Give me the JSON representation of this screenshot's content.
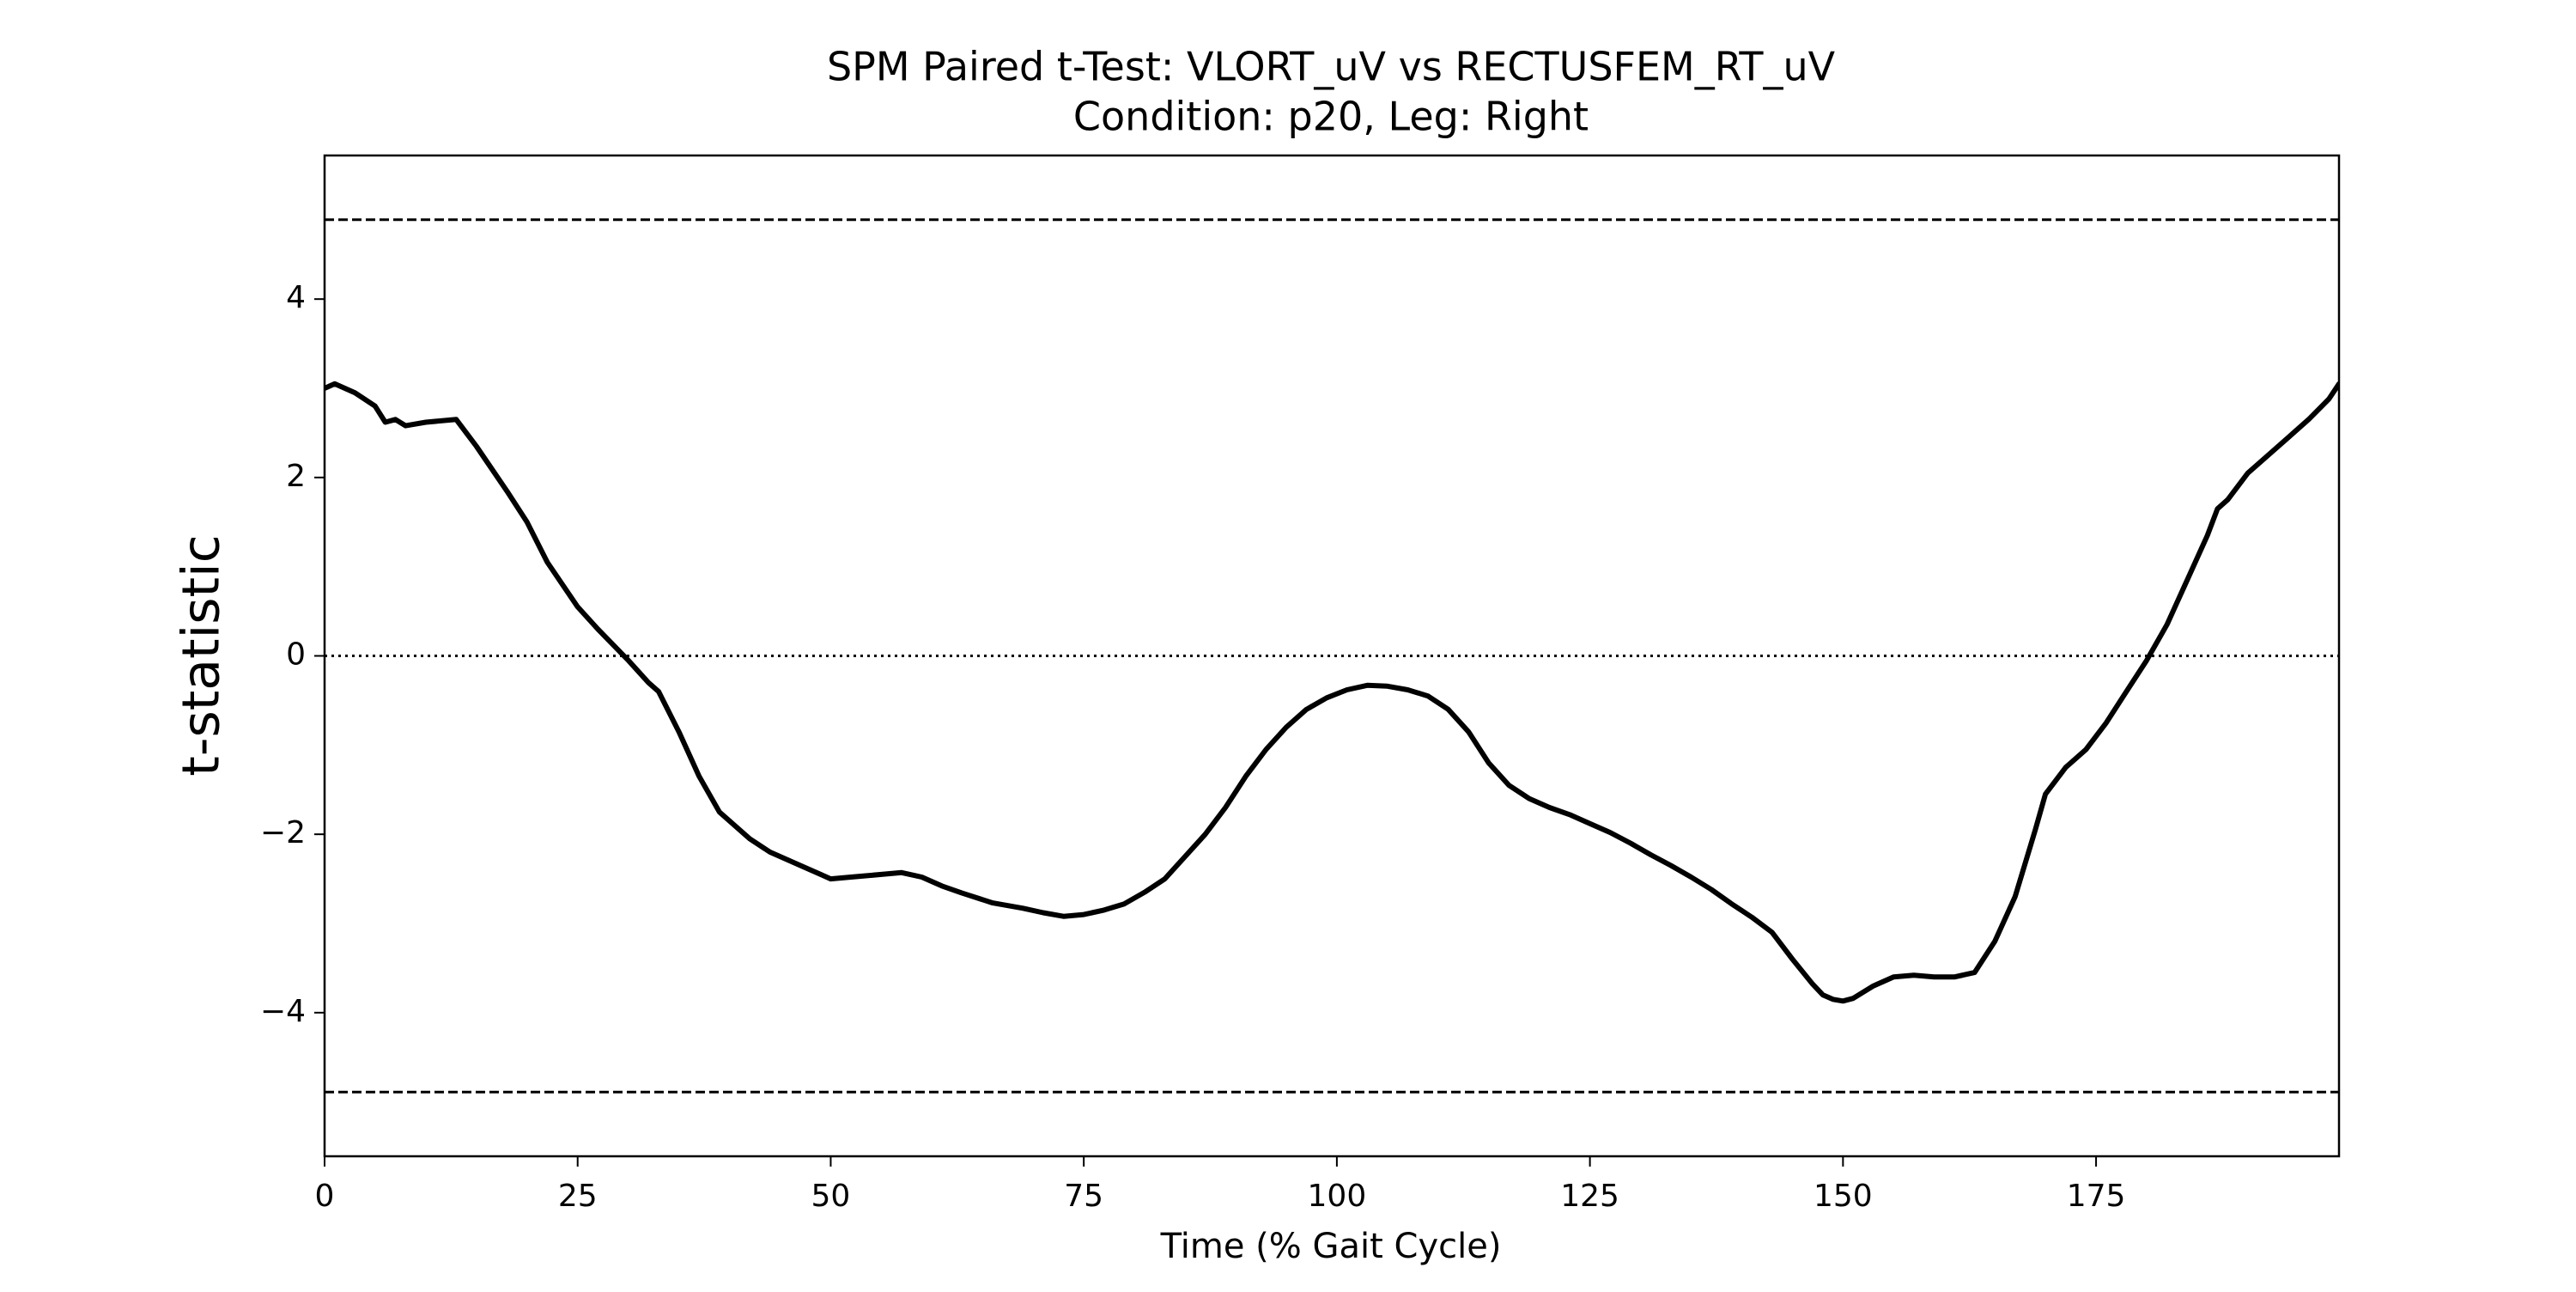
{
  "chart_data": {
    "type": "line",
    "title": "SPM Paired t-Test: VLORT_uV vs RECTUSFEM_RT_uV",
    "subtitle": "Condition: p20, Leg: Right",
    "xlabel": "Time (% Gait Cycle)",
    "ylabel": "t-statistic",
    "xlim": [
      0,
      199
    ],
    "ylim": [
      -5.61,
      5.61
    ],
    "xticks": [
      0,
      25,
      50,
      75,
      100,
      125,
      150,
      175
    ],
    "yticks": [
      {
        "value": -4,
        "label": "−4"
      },
      {
        "value": -2,
        "label": "−2"
      },
      0,
      2,
      4
    ],
    "thresholds": [
      4.89,
      -4.89
    ],
    "reference_line": 0,
    "color": "#000000",
    "series": [
      {
        "x": [
          0,
          1,
          3,
          5,
          6,
          7,
          8,
          10,
          13,
          15,
          18,
          20,
          22,
          25,
          27,
          30,
          32,
          33,
          35,
          37,
          39,
          42,
          44,
          47,
          49,
          50,
          52,
          55,
          57,
          59,
          61,
          63,
          66,
          69,
          71,
          73,
          75,
          77,
          79,
          81,
          83,
          85,
          87,
          89,
          91,
          93,
          95,
          97,
          99,
          101,
          103,
          105,
          107,
          109,
          111,
          113,
          115,
          117,
          119,
          121,
          123,
          125,
          127,
          129,
          131,
          133,
          135,
          137,
          139,
          141,
          143,
          145,
          147,
          148,
          149,
          150,
          151,
          153,
          155,
          157,
          159,
          161,
          163,
          165,
          167,
          169,
          170,
          172,
          174,
          176,
          178,
          180,
          182,
          184,
          186,
          187,
          188,
          190,
          192,
          194,
          196,
          198,
          199
        ],
        "values": [
          3.0,
          3.05,
          2.95,
          2.8,
          2.62,
          2.65,
          2.58,
          2.62,
          2.65,
          2.35,
          1.85,
          1.5,
          1.05,
          0.55,
          0.3,
          -0.05,
          -0.3,
          -0.4,
          -0.85,
          -1.35,
          -1.75,
          -2.05,
          -2.2,
          -2.35,
          -2.45,
          -2.5,
          -2.48,
          -2.45,
          -2.43,
          -2.48,
          -2.58,
          -2.66,
          -2.77,
          -2.83,
          -2.88,
          -2.92,
          -2.9,
          -2.85,
          -2.78,
          -2.65,
          -2.5,
          -2.25,
          -2.0,
          -1.7,
          -1.35,
          -1.05,
          -0.8,
          -0.6,
          -0.47,
          -0.38,
          -0.33,
          -0.34,
          -0.38,
          -0.45,
          -0.6,
          -0.85,
          -1.2,
          -1.45,
          -1.6,
          -1.7,
          -1.78,
          -1.88,
          -1.98,
          -2.1,
          -2.23,
          -2.35,
          -2.48,
          -2.62,
          -2.78,
          -2.93,
          -3.1,
          -3.4,
          -3.68,
          -3.8,
          -3.85,
          -3.87,
          -3.84,
          -3.7,
          -3.6,
          -3.58,
          -3.6,
          -3.6,
          -3.55,
          -3.2,
          -2.7,
          -1.95,
          -1.55,
          -1.25,
          -1.05,
          -0.75,
          -0.4,
          -0.05,
          0.35,
          0.85,
          1.35,
          1.65,
          1.75,
          2.05,
          2.25,
          2.45,
          2.65,
          2.88,
          3.05
        ]
      }
    ]
  }
}
